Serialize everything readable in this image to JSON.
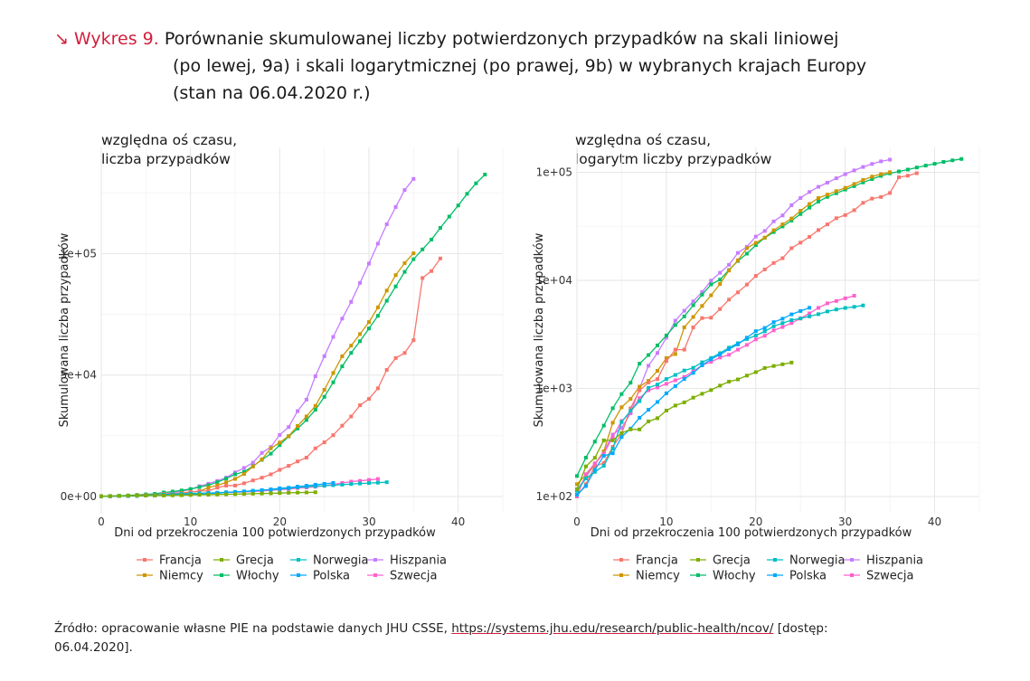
{
  "header": {
    "arrow": "↘",
    "prefix": "Wykres 9.",
    "line1": "Porównanie skumulowanej liczby potwierdzonych przypadków na skali liniowej",
    "line2": "(po lewej, 9a) i skali logarytmicznej (po prawej, 9b) w wybranych krajach Europy",
    "line3": "(stan na 06.04.2020 r.)"
  },
  "footer": {
    "text_before": "Źródło: opracowanie własne PIE na podstawie danych JHU CSSE, ",
    "link": "https://systems.jhu.edu/research/public-health/ncov/",
    "text_after": " [dostęp:",
    "line2": "06.04.2020]."
  },
  "colors": {
    "Francja": "#f8766d",
    "Grecja": "#7cae00",
    "Norwegia": "#00bfc4",
    "Hiszpania": "#c77cff",
    "Niemcy": "#cd9600",
    "Włochy": "#00be67",
    "Polska": "#00a9ff",
    "Szwecja": "#ff61cc"
  },
  "chart_data": [
    {
      "type": "line",
      "id": "9a",
      "subtitle_line1": "względna oś czasu,",
      "subtitle_line2": "liczba przypadków",
      "xlabel": "Dni od przekroczenia 100 potwierdzonych przypadków",
      "ylabel": "Skumulowana liczba przypadków",
      "yscale": "linear",
      "xlim": [
        0,
        45
      ],
      "ylim": [
        0,
        140000
      ],
      "xticks": [
        0,
        10,
        20,
        30,
        40
      ],
      "xtick_labels": [
        "0",
        "10",
        "20",
        "30",
        "40"
      ],
      "yticks": [
        0,
        50000,
        100000
      ],
      "ytick_labels": [
        "0e+00",
        "5e+04",
        "1e+05"
      ],
      "grid": true,
      "legend_position": "bottom",
      "legend_rows": [
        [
          "Francja",
          "Grecja",
          "Norwegia",
          "Hiszpania"
        ],
        [
          "Niemcy",
          "Włochy",
          "Polska",
          "Szwecja"
        ]
      ],
      "series": [
        {
          "name": "Hiszpania",
          "values": [
            114,
            151,
            200,
            261,
            374,
            430,
            589,
            999,
            1622,
            2128,
            2950,
            4231,
            5232,
            6391,
            7798,
            9942,
            11748,
            13910,
            17963,
            20410,
            25374,
            28603,
            35136,
            39885,
            49515,
            57786,
            65719,
            73235,
            80110,
            87956,
            95923,
            104118,
            112065,
            119199,
            126168,
            130759
          ]
        },
        {
          "name": "Włochy",
          "values": [
            155,
            229,
            322,
            453,
            655,
            888,
            1128,
            1694,
            2036,
            2502,
            3089,
            3858,
            4636,
            5883,
            7375,
            9172,
            10149,
            12462,
            15113,
            17660,
            21157,
            24747,
            27980,
            31506,
            35713,
            41035,
            47021,
            53578,
            59138,
            63927,
            69176,
            74386,
            80589,
            86498,
            92472,
            97689,
            101739,
            105792,
            110574,
            115242,
            119827,
            124632,
            128948,
            132547
          ]
        },
        {
          "name": "Niemcy",
          "values": [
            130,
            159,
            196,
            262,
            482,
            670,
            799,
            1040,
            1176,
            1457,
            1908,
            2078,
            3675,
            4585,
            5795,
            7272,
            9257,
            12327,
            15320,
            19848,
            22213,
            24873,
            29056,
            32986,
            37323,
            43938,
            50871,
            57695,
            62095,
            66885,
            71808,
            77872,
            84794,
            91159,
            96092,
            100123
          ]
        },
        {
          "name": "Francja",
          "values": [
            100,
            130,
            191,
            204,
            288,
            380,
            656,
            959,
            1136,
            1219,
            1794,
            2284,
            2284,
            3667,
            4480,
            4513,
            5423,
            6633,
            7730,
            9134,
            10995,
            12612,
            14459,
            16018,
            19856,
            22304,
            25233,
            29155,
            32964,
            37575,
            40174,
            44550,
            52128,
            56989,
            59105,
            64338,
            89953,
            92839,
            98010
          ]
        },
        {
          "name": "Szwecja",
          "values": [
            101,
            161,
            203,
            248,
            355,
            500,
            599,
            814,
            961,
            1022,
            1103,
            1190,
            1279,
            1439,
            1639,
            1763,
            1934,
            2046,
            2286,
            2526,
            2840,
            3069,
            3447,
            3700,
            4028,
            4435,
            4947,
            5568,
            6131,
            6443,
            6830,
            7206
          ]
        },
        {
          "name": "Norwegia",
          "values": [
            113,
            147,
            169,
            192,
            277,
            489,
            621,
            762,
            1013,
            1086,
            1221,
            1333,
            1463,
            1550,
            1746,
            1914,
            2118,
            2385,
            2621,
            2863,
            3084,
            3369,
            3755,
            4015,
            4284,
            4445,
            4641,
            4863,
            5147,
            5370,
            5550,
            5687,
            5865
          ]
        },
        {
          "name": "Polska",
          "values": [
            104,
            125,
            177,
            238,
            251,
            355,
            425,
            536,
            634,
            749,
            901,
            1051,
            1221,
            1389,
            1638,
            1862,
            2055,
            2311,
            2554,
            2946,
            3383,
            3627,
            4102,
            4413,
            4848,
            5205,
            5575
          ]
        },
        {
          "name": "Grecja",
          "values": [
            117,
            190,
            228,
            331,
            331,
            387,
            418,
            418,
            495,
            530,
            624,
            695,
            743,
            821,
            892,
            966,
            1061,
            1156,
            1212,
            1314,
            1415,
            1544,
            1613,
            1673,
            1735
          ]
        }
      ]
    },
    {
      "type": "line",
      "id": "9b",
      "subtitle_line1": "względna oś czasu,",
      "subtitle_line2": "logarytm liczby przypadków",
      "xlabel": "Dni od przekroczenia 100 potwierdzonych przypadków",
      "ylabel": "Skumulowana liczba przypadków",
      "yscale": "log10",
      "xlim": [
        0,
        45
      ],
      "ylim": [
        100,
        140000
      ],
      "xticks": [
        0,
        10,
        20,
        30,
        40
      ],
      "xtick_labels": [
        "0",
        "10",
        "20",
        "30",
        "40"
      ],
      "yticks": [
        100,
        1000,
        10000,
        100000
      ],
      "ytick_labels": [
        "1e+02",
        "1e+03",
        "1e+04",
        "1e+05"
      ],
      "grid": true,
      "legend_position": "bottom",
      "legend_rows": [
        [
          "Francja",
          "Grecja",
          "Norwegia",
          "Hiszpania"
        ],
        [
          "Niemcy",
          "Włochy",
          "Polska",
          "Szwecja"
        ]
      ],
      "series": "same as 9a"
    }
  ]
}
